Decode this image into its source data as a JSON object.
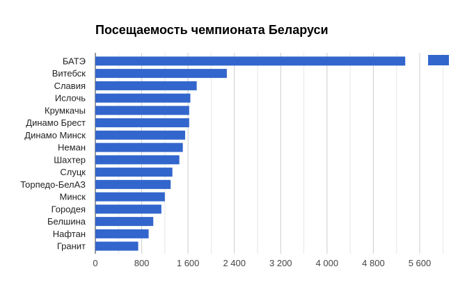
{
  "chart_data": {
    "type": "bar",
    "orientation": "horizontal",
    "title": "Посещаемость чемпионата Беларуси",
    "categories": [
      "БАТЭ",
      "Витебск",
      "Славия",
      "Ислочь",
      "Крумкачы",
      "Динамо Брест",
      "Динамо Минск",
      "Неман",
      "Шахтер",
      "Слуцк",
      "Торпедо-БелАЗ",
      "Минск",
      "Городея",
      "Белшина",
      "Нафтан",
      "Гранит"
    ],
    "series": [
      {
        "values": [
          5350,
          2270,
          1750,
          1640,
          1620,
          1620,
          1550,
          1510,
          1450,
          1330,
          1300,
          1200,
          1140,
          1000,
          920,
          740
        ]
      }
    ],
    "x_ticks": [
      "0",
      "800",
      "1 600",
      "2 400",
      "3 200",
      "4 000",
      "4 800",
      "5 600"
    ],
    "xlim": [
      0,
      6100
    ],
    "grid": true,
    "legend": "top-right",
    "bar_color": "#3366cc"
  }
}
